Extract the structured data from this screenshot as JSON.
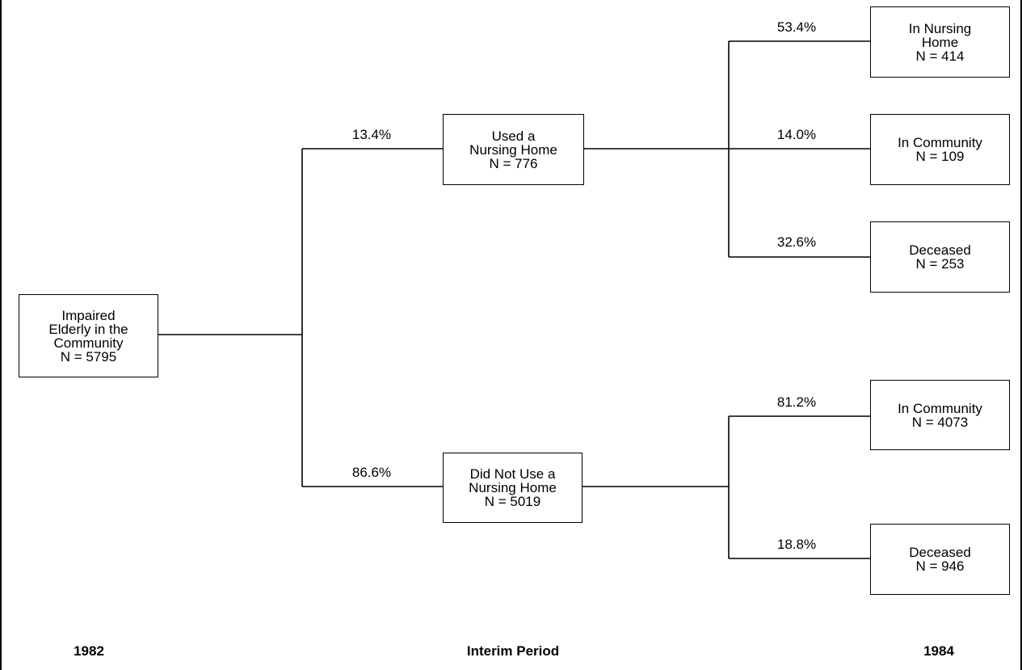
{
  "diagram": {
    "nodes": {
      "root": {
        "label": "Impaired\nElderly in the\nCommunity\nN = 5795"
      },
      "used": {
        "label": "Used a\nNursing Home\nN = 776"
      },
      "notused": {
        "label": "Did Not Use a\nNursing Home\nN = 5019"
      },
      "used_nh": {
        "label": "In Nursing\nHome\nN = 414"
      },
      "used_comm": {
        "label": "In Community\nN = 109"
      },
      "used_dec": {
        "label": "Deceased\nN = 253"
      },
      "notused_comm": {
        "label": "In Community\nN = 4073"
      },
      "notused_dec": {
        "label": "Deceased\nN = 946"
      }
    },
    "percentages": {
      "used": "13.4%",
      "notused": "86.6%",
      "used_nh": "53.4%",
      "used_comm": "14.0%",
      "used_dec": "32.6%",
      "notused_comm": "81.2%",
      "notused_dec": "18.8%"
    },
    "periods": {
      "start": "1982",
      "middle": "Interim Period",
      "end": "1984"
    }
  }
}
